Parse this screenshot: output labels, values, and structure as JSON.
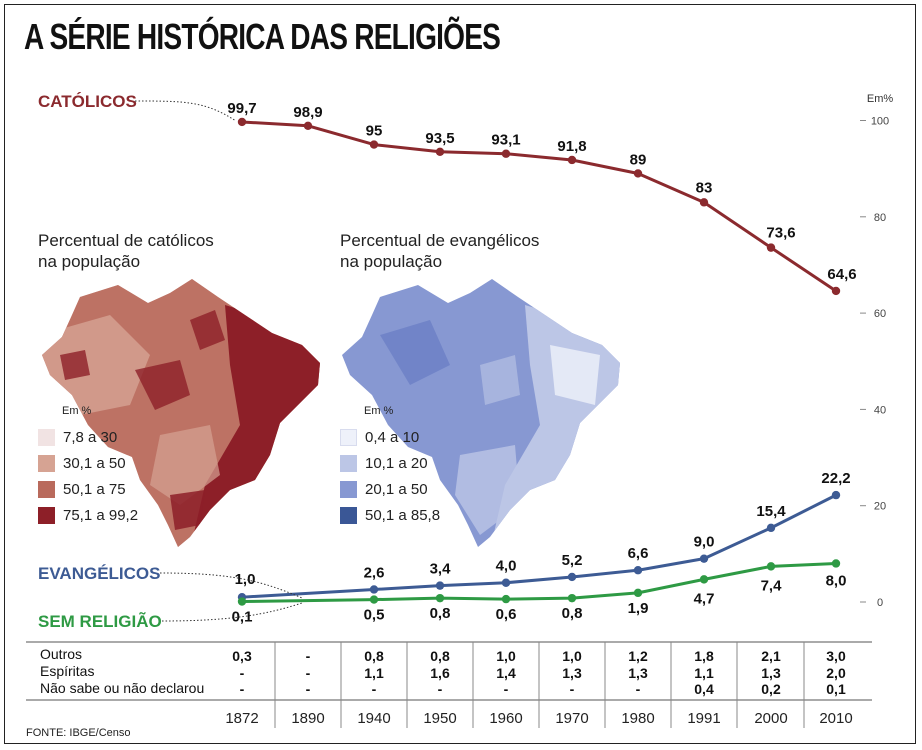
{
  "title": "A SÉRIE HISTÓRICA DAS RELIGIÕES",
  "source": "FONTE: IBGE/Censo",
  "colors": {
    "catolicos": "#8b2a2e",
    "evangelicos": "#3d5b94",
    "sem_religiao": "#2e9a44"
  },
  "chart_data": {
    "type": "line",
    "x": [
      "1872",
      "1890",
      "1940",
      "1950",
      "1960",
      "1970",
      "1980",
      "1991",
      "2000",
      "2010"
    ],
    "unit_label": "Em%",
    "ylim": [
      0,
      100
    ],
    "yticks": [
      "100",
      "80",
      "60",
      "40",
      "20",
      "0"
    ],
    "series": [
      {
        "name": "CATÓLICOS",
        "values": [
          99.7,
          98.9,
          95,
          93.5,
          93.1,
          91.8,
          89,
          83,
          73.6,
          64.6
        ],
        "labels": [
          "99,7",
          "98,9",
          "95",
          "93,5",
          "93,1",
          "91,8",
          "89",
          "83",
          "73,6",
          "64,6"
        ]
      },
      {
        "name": "EVANGÉLICOS",
        "values": [
          1.0,
          null,
          2.6,
          3.4,
          4.0,
          5.2,
          6.6,
          9.0,
          15.4,
          22.2
        ],
        "labels": [
          "1,0",
          "",
          "2,6",
          "3,4",
          "4,0",
          "5,2",
          "6,6",
          "9,0",
          "15,4",
          "22,2"
        ]
      },
      {
        "name": "SEM RELIGIÃO",
        "values": [
          0.1,
          null,
          0.5,
          0.8,
          0.6,
          0.8,
          1.9,
          4.7,
          7.4,
          8.0
        ],
        "labels": [
          "0,1",
          "",
          "0,5",
          "0,8",
          "0,6",
          "0,8",
          "1,9",
          "4,7",
          "7,4",
          "8,0"
        ]
      }
    ]
  },
  "table": {
    "rows": [
      {
        "label": "Outros",
        "values": [
          "0,3",
          "-",
          "0,8",
          "0,8",
          "1,0",
          "1,0",
          "1,2",
          "1,8",
          "2,1",
          "3,0"
        ]
      },
      {
        "label": "Espíritas",
        "values": [
          "-",
          "-",
          "1,1",
          "1,6",
          "1,4",
          "1,3",
          "1,3",
          "1,1",
          "1,3",
          "2,0"
        ]
      },
      {
        "label": "Não sabe ou não declarou",
        "values": [
          "-",
          "-",
          "-",
          "-",
          "-",
          "-",
          "-",
          "0,4",
          "0,2",
          "0,1"
        ]
      }
    ]
  },
  "maps": {
    "catolicos": {
      "title": "Percentual de católicos\nna população",
      "legend_unit": "Em %",
      "legend": [
        {
          "label": "7,8 a 30",
          "color": "#f1e3e3"
        },
        {
          "label": "30,1 a 50",
          "color": "#d6a393"
        },
        {
          "label": "50,1 a 75",
          "color": "#b96a5c"
        },
        {
          "label": "75,1 a 99,2",
          "color": "#8d1f28"
        }
      ]
    },
    "evangelicos": {
      "title": "Percentual de evangélicos\nna população",
      "legend_unit": "Em %",
      "legend": [
        {
          "label": "0,4 a 10",
          "color": "#eef1fa"
        },
        {
          "label": "10,1 a 20",
          "color": "#bcc6e6"
        },
        {
          "label": "20,1 a 50",
          "color": "#8798d2"
        },
        {
          "label": "50,1 a 85,8",
          "color": "#3a5796"
        }
      ]
    }
  }
}
